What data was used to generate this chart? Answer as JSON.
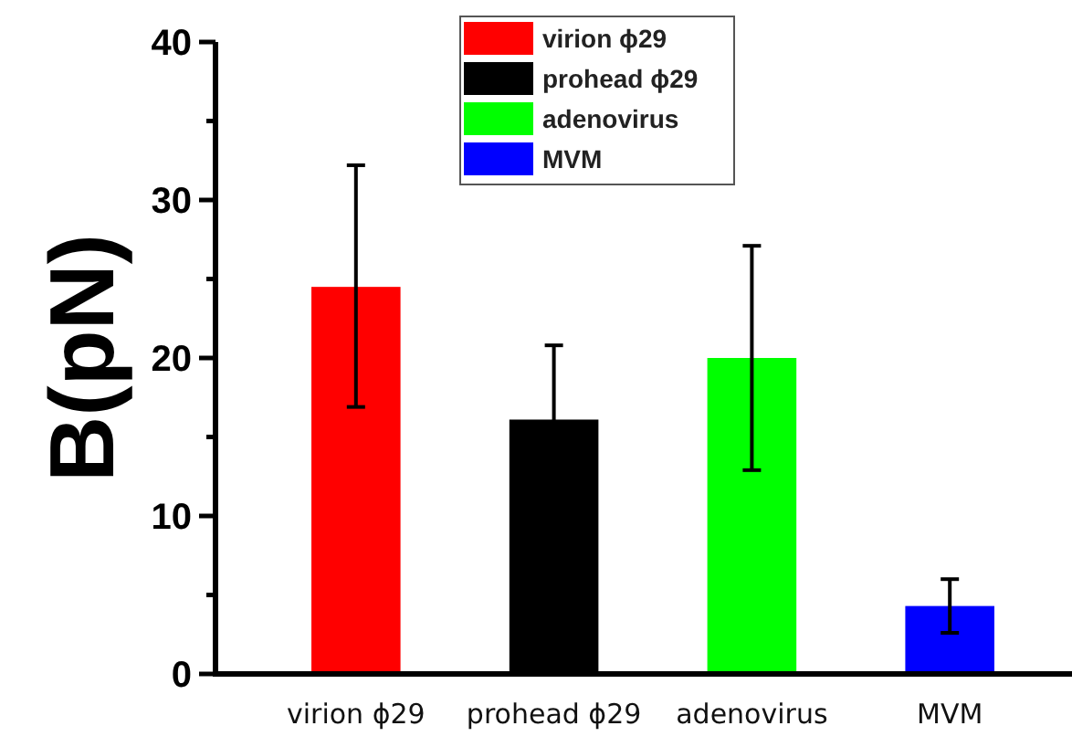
{
  "chart_data": {
    "type": "bar",
    "ylabel": "B(pN)",
    "categories": [
      "virion ϕ29",
      "prohead ϕ29",
      "adenovirus",
      "MVM"
    ],
    "series": [
      {
        "name": "virion ϕ29",
        "color": "#ff0000",
        "values": [
          24.5,
          null,
          null,
          null
        ],
        "errors": [
          [
            16.9,
            32.2
          ],
          null,
          null,
          null
        ]
      },
      {
        "name": "prohead ϕ29",
        "color": "#000000",
        "values": [
          null,
          16.1,
          null,
          null
        ],
        "errors": [
          null,
          4.7,
          null,
          null
        ]
      },
      {
        "name": "adenovirus",
        "color": "#00ff00",
        "values": [
          null,
          null,
          20.0,
          null
        ],
        "errors": [
          null,
          null,
          7.1,
          null
        ]
      },
      {
        "name": "MVM",
        "color": "#0000ff",
        "values": [
          null,
          null,
          null,
          4.3
        ],
        "errors": [
          null,
          null,
          null,
          1.7
        ]
      }
    ],
    "ylim": [
      0,
      40
    ],
    "yticks": [
      0,
      {
        "value": 5,
        "label": null
      },
      10,
      {
        "value": 15,
        "label": null
      },
      20,
      {
        "value": 25,
        "label": null
      },
      30,
      {
        "value": 35,
        "label": null
      },
      40
    ],
    "legend": "top"
  }
}
